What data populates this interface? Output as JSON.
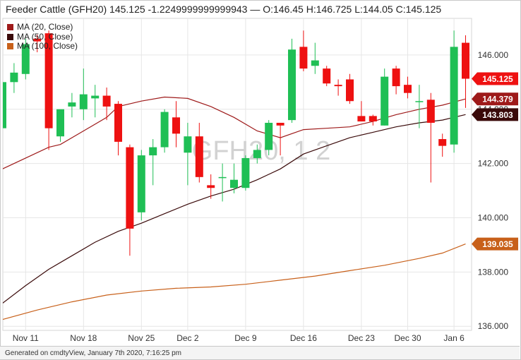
{
  "header": {
    "title": "Feeder Cattle (GFH20) 145.125 -1.2249999999999943 — O:146.45 H:146.725 L:144.05 C:145.125"
  },
  "footer": {
    "text": "Generated on cmdtyView, January 7th 2020, 7:16:25 pm"
  },
  "colors": {
    "up": "#1fbf55",
    "down": "#ee1111",
    "ma20": "#9e1a1a",
    "ma50": "#3a0a0a",
    "ma100": "#c8601a",
    "last_price": "#ee1111",
    "grid": "#e6e6e6"
  },
  "chart_data": {
    "type": "candlestick",
    "watermark": "GFH20, 1 2",
    "legend": [
      {
        "name": "MA (20, Close)",
        "color": "#9e1a1a"
      },
      {
        "name": "MA (50, Close)",
        "color": "#3a0a0a"
      },
      {
        "name": "MA (100, Close)",
        "color": "#c8601a"
      }
    ],
    "ylim": [
      135.85,
      147.35
    ],
    "y_ticks": [
      136,
      138,
      140,
      142,
      144,
      146
    ],
    "y_tick_labels": [
      "136.000",
      "138.000",
      "140.000",
      "142.000",
      "144.000",
      "146.000"
    ],
    "x_tick_labels": [
      {
        "label": "Nov 11",
        "index": 2
      },
      {
        "label": "Nov 18",
        "index": 7
      },
      {
        "label": "Nov 25",
        "index": 12
      },
      {
        "label": "Dec 2",
        "index": 16
      },
      {
        "label": "Dec 9",
        "index": 21
      },
      {
        "label": "Dec 16",
        "index": 26
      },
      {
        "label": "Dec 23",
        "index": 31
      },
      {
        "label": "Dec 30",
        "index": 35
      },
      {
        "label": "Jan 6",
        "index": 39
      }
    ],
    "candles": [
      {
        "o": 143.3,
        "h": 145.6,
        "l": 143.1,
        "c": 145.0
      },
      {
        "o": 145.0,
        "h": 145.7,
        "l": 144.6,
        "c": 145.35
      },
      {
        "o": 145.3,
        "h": 146.6,
        "l": 145.1,
        "c": 146.4
      },
      {
        "o": 146.6,
        "h": 146.75,
        "l": 146.1,
        "c": 146.5
      },
      {
        "o": 146.8,
        "h": 146.9,
        "l": 142.5,
        "c": 143.3
      },
      {
        "o": 143.0,
        "h": 143.9,
        "l": 142.8,
        "c": 144.0
      },
      {
        "o": 144.1,
        "h": 144.6,
        "l": 143.7,
        "c": 144.25
      },
      {
        "o": 144.0,
        "h": 145.5,
        "l": 143.6,
        "c": 144.55
      },
      {
        "o": 144.4,
        "h": 144.9,
        "l": 143.7,
        "c": 144.5
      },
      {
        "o": 144.5,
        "h": 144.8,
        "l": 143.6,
        "c": 144.1
      },
      {
        "o": 144.2,
        "h": 144.3,
        "l": 142.3,
        "c": 142.8
      },
      {
        "o": 142.6,
        "h": 142.7,
        "l": 138.6,
        "c": 139.6
      },
      {
        "o": 140.2,
        "h": 142.5,
        "l": 139.9,
        "c": 142.3
      },
      {
        "o": 142.3,
        "h": 142.9,
        "l": 141.2,
        "c": 142.6
      },
      {
        "o": 142.6,
        "h": 144.0,
        "l": 142.4,
        "c": 143.9
      },
      {
        "o": 143.7,
        "h": 144.3,
        "l": 142.6,
        "c": 143.1
      },
      {
        "o": 142.4,
        "h": 143.5,
        "l": 141.2,
        "c": 143.0
      },
      {
        "o": 143.0,
        "h": 143.5,
        "l": 141.3,
        "c": 141.5
      },
      {
        "o": 141.2,
        "h": 141.6,
        "l": 140.7,
        "c": 141.1
      },
      {
        "o": 141.5,
        "h": 142.0,
        "l": 140.6,
        "c": 141.5
      },
      {
        "o": 141.1,
        "h": 142.0,
        "l": 140.9,
        "c": 141.4
      },
      {
        "o": 141.1,
        "h": 142.3,
        "l": 141.0,
        "c": 142.2
      },
      {
        "o": 142.2,
        "h": 142.7,
        "l": 142.0,
        "c": 142.5
      },
      {
        "o": 142.5,
        "h": 143.6,
        "l": 142.3,
        "c": 143.5
      },
      {
        "o": 143.5,
        "h": 143.5,
        "l": 142.3,
        "c": 143.4
      },
      {
        "o": 143.6,
        "h": 146.6,
        "l": 143.5,
        "c": 146.2
      },
      {
        "o": 146.3,
        "h": 146.9,
        "l": 145.4,
        "c": 145.5
      },
      {
        "o": 145.6,
        "h": 146.45,
        "l": 145.3,
        "c": 145.8
      },
      {
        "o": 145.5,
        "h": 145.6,
        "l": 144.85,
        "c": 144.95
      },
      {
        "o": 144.9,
        "h": 145.1,
        "l": 144.5,
        "c": 144.85
      },
      {
        "o": 145.1,
        "h": 145.3,
        "l": 144.2,
        "c": 144.3
      },
      {
        "o": 143.75,
        "h": 144.3,
        "l": 143.6,
        "c": 143.55
      },
      {
        "o": 143.75,
        "h": 143.8,
        "l": 143.4,
        "c": 143.55
      },
      {
        "o": 143.4,
        "h": 145.5,
        "l": 143.4,
        "c": 145.2
      },
      {
        "o": 145.5,
        "h": 145.6,
        "l": 144.55,
        "c": 144.85
      },
      {
        "o": 144.9,
        "h": 145.2,
        "l": 144.4,
        "c": 144.6
      },
      {
        "o": 144.3,
        "h": 144.9,
        "l": 143.3,
        "c": 144.3
      },
      {
        "o": 144.35,
        "h": 144.6,
        "l": 141.3,
        "c": 143.5
      },
      {
        "o": 142.9,
        "h": 143.1,
        "l": 142.25,
        "c": 142.65
      },
      {
        "o": 142.7,
        "h": 146.9,
        "l": 142.4,
        "c": 146.3
      },
      {
        "o": 146.45,
        "h": 146.725,
        "l": 144.05,
        "c": 145.125
      }
    ],
    "ma20": [
      [
        0,
        141.8
      ],
      [
        2,
        142.2
      ],
      [
        4,
        142.6
      ],
      [
        5,
        142.7
      ],
      [
        7,
        143.2
      ],
      [
        9,
        143.7
      ],
      [
        10,
        144.1
      ],
      [
        12,
        144.3
      ],
      [
        14,
        144.45
      ],
      [
        16,
        144.4
      ],
      [
        18,
        144.1
      ],
      [
        20,
        143.7
      ],
      [
        22,
        143.2
      ],
      [
        24,
        142.95
      ],
      [
        26,
        143.25
      ],
      [
        28,
        143.3
      ],
      [
        30,
        143.35
      ],
      [
        32,
        143.55
      ],
      [
        34,
        143.8
      ],
      [
        36,
        144.0
      ],
      [
        38,
        144.15
      ],
      [
        40,
        144.379
      ]
    ],
    "ma50": [
      [
        0,
        136.85
      ],
      [
        2,
        137.5
      ],
      [
        4,
        138.1
      ],
      [
        6,
        138.6
      ],
      [
        8,
        139.1
      ],
      [
        10,
        139.5
      ],
      [
        12,
        139.8
      ],
      [
        14,
        140.15
      ],
      [
        16,
        140.5
      ],
      [
        18,
        140.8
      ],
      [
        20,
        141.05
      ],
      [
        22,
        141.4
      ],
      [
        24,
        141.8
      ],
      [
        26,
        142.35
      ],
      [
        28,
        142.65
      ],
      [
        30,
        142.95
      ],
      [
        32,
        143.15
      ],
      [
        34,
        143.35
      ],
      [
        36,
        143.5
      ],
      [
        38,
        143.6
      ],
      [
        40,
        143.803
      ]
    ],
    "ma100": [
      [
        0,
        136.25
      ],
      [
        3,
        136.6
      ],
      [
        6,
        136.9
      ],
      [
        9,
        137.15
      ],
      [
        12,
        137.3
      ],
      [
        15,
        137.4
      ],
      [
        18,
        137.45
      ],
      [
        21,
        137.55
      ],
      [
        24,
        137.7
      ],
      [
        27,
        137.85
      ],
      [
        30,
        138.05
      ],
      [
        33,
        138.25
      ],
      [
        36,
        138.5
      ],
      [
        38,
        138.7
      ],
      [
        40,
        139.035
      ]
    ],
    "price_labels": [
      {
        "value": 145.125,
        "text": "145.125",
        "color": "#ee1111"
      },
      {
        "value": 144.379,
        "text": "144.379",
        "color": "#9e1a1a"
      },
      {
        "value": 143.803,
        "text": "143.803",
        "color": "#3a0a0a"
      },
      {
        "value": 139.035,
        "text": "139.035",
        "color": "#c8601a"
      }
    ]
  }
}
